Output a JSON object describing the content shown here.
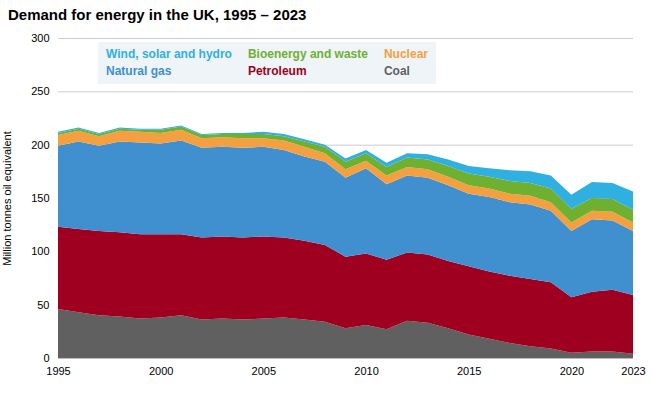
{
  "chart_data": {
    "type": "area",
    "stacked": true,
    "title": "Demand for energy in the UK, 1995 – 2023",
    "ylabel": "Million tonnes oil equivalent",
    "x": [
      1995,
      1996,
      1997,
      1998,
      1999,
      2000,
      2001,
      2002,
      2003,
      2004,
      2005,
      2006,
      2007,
      2008,
      2009,
      2010,
      2011,
      2012,
      2013,
      2014,
      2015,
      2016,
      2017,
      2018,
      2019,
      2020,
      2021,
      2022,
      2023
    ],
    "series": [
      {
        "name": "Coal",
        "color": "#606060",
        "values": [
          46,
          43,
          40,
          39,
          37,
          38,
          40,
          36,
          37,
          36,
          37,
          38,
          36,
          34,
          28,
          31,
          27,
          35,
          33,
          28,
          22,
          18,
          14,
          11,
          9,
          5,
          6,
          6,
          4
        ]
      },
      {
        "name": "Petroleum",
        "color": "#a00020",
        "values": [
          77,
          78,
          79,
          79,
          79,
          78,
          76,
          77,
          77,
          77,
          77,
          75,
          74,
          72,
          67,
          67,
          65,
          64,
          64,
          63,
          64,
          63,
          63,
          63,
          62,
          52,
          56,
          58,
          55
        ]
      },
      {
        "name": "Natural gas",
        "color": "#4090d0",
        "values": [
          76,
          82,
          80,
          85,
          86,
          85,
          88,
          84,
          84,
          84,
          84,
          82,
          79,
          78,
          74,
          80,
          71,
          72,
          72,
          71,
          68,
          70,
          69,
          70,
          67,
          62,
          68,
          65,
          60
        ]
      },
      {
        "name": "Nuclear",
        "color": "#f5a040",
        "values": [
          10,
          10,
          9,
          10,
          10,
          10,
          10,
          9,
          9,
          9,
          8,
          9,
          9,
          8,
          8,
          7,
          8,
          8,
          8,
          8,
          8,
          8,
          8,
          8,
          8,
          8,
          8,
          8,
          8
        ]
      },
      {
        "name": "Bioenergy and waste",
        "color": "#70b030",
        "values": [
          2,
          2,
          2,
          2,
          2,
          3,
          3,
          3,
          3,
          4,
          4,
          4,
          5,
          6,
          7,
          7,
          8,
          9,
          9,
          10,
          11,
          11,
          12,
          12,
          13,
          13,
          12,
          12,
          12
        ]
      },
      {
        "name": "Wind, solar and hydro",
        "color": "#30b0e0",
        "values": [
          1,
          1,
          1,
          1,
          1,
          1,
          1,
          1,
          1,
          1,
          2,
          2,
          2,
          2,
          3,
          3,
          4,
          4,
          5,
          6,
          7,
          8,
          10,
          11,
          12,
          13,
          15,
          15,
          17
        ]
      }
    ],
    "xlim": [
      1995,
      2023
    ],
    "xticks": [
      1995,
      2000,
      2005,
      2010,
      2015,
      2020,
      2023
    ],
    "ylim": [
      0,
      300
    ],
    "yticks": [
      0,
      50,
      100,
      150,
      200,
      250,
      300
    ],
    "grid": true,
    "legend": "upper left"
  }
}
